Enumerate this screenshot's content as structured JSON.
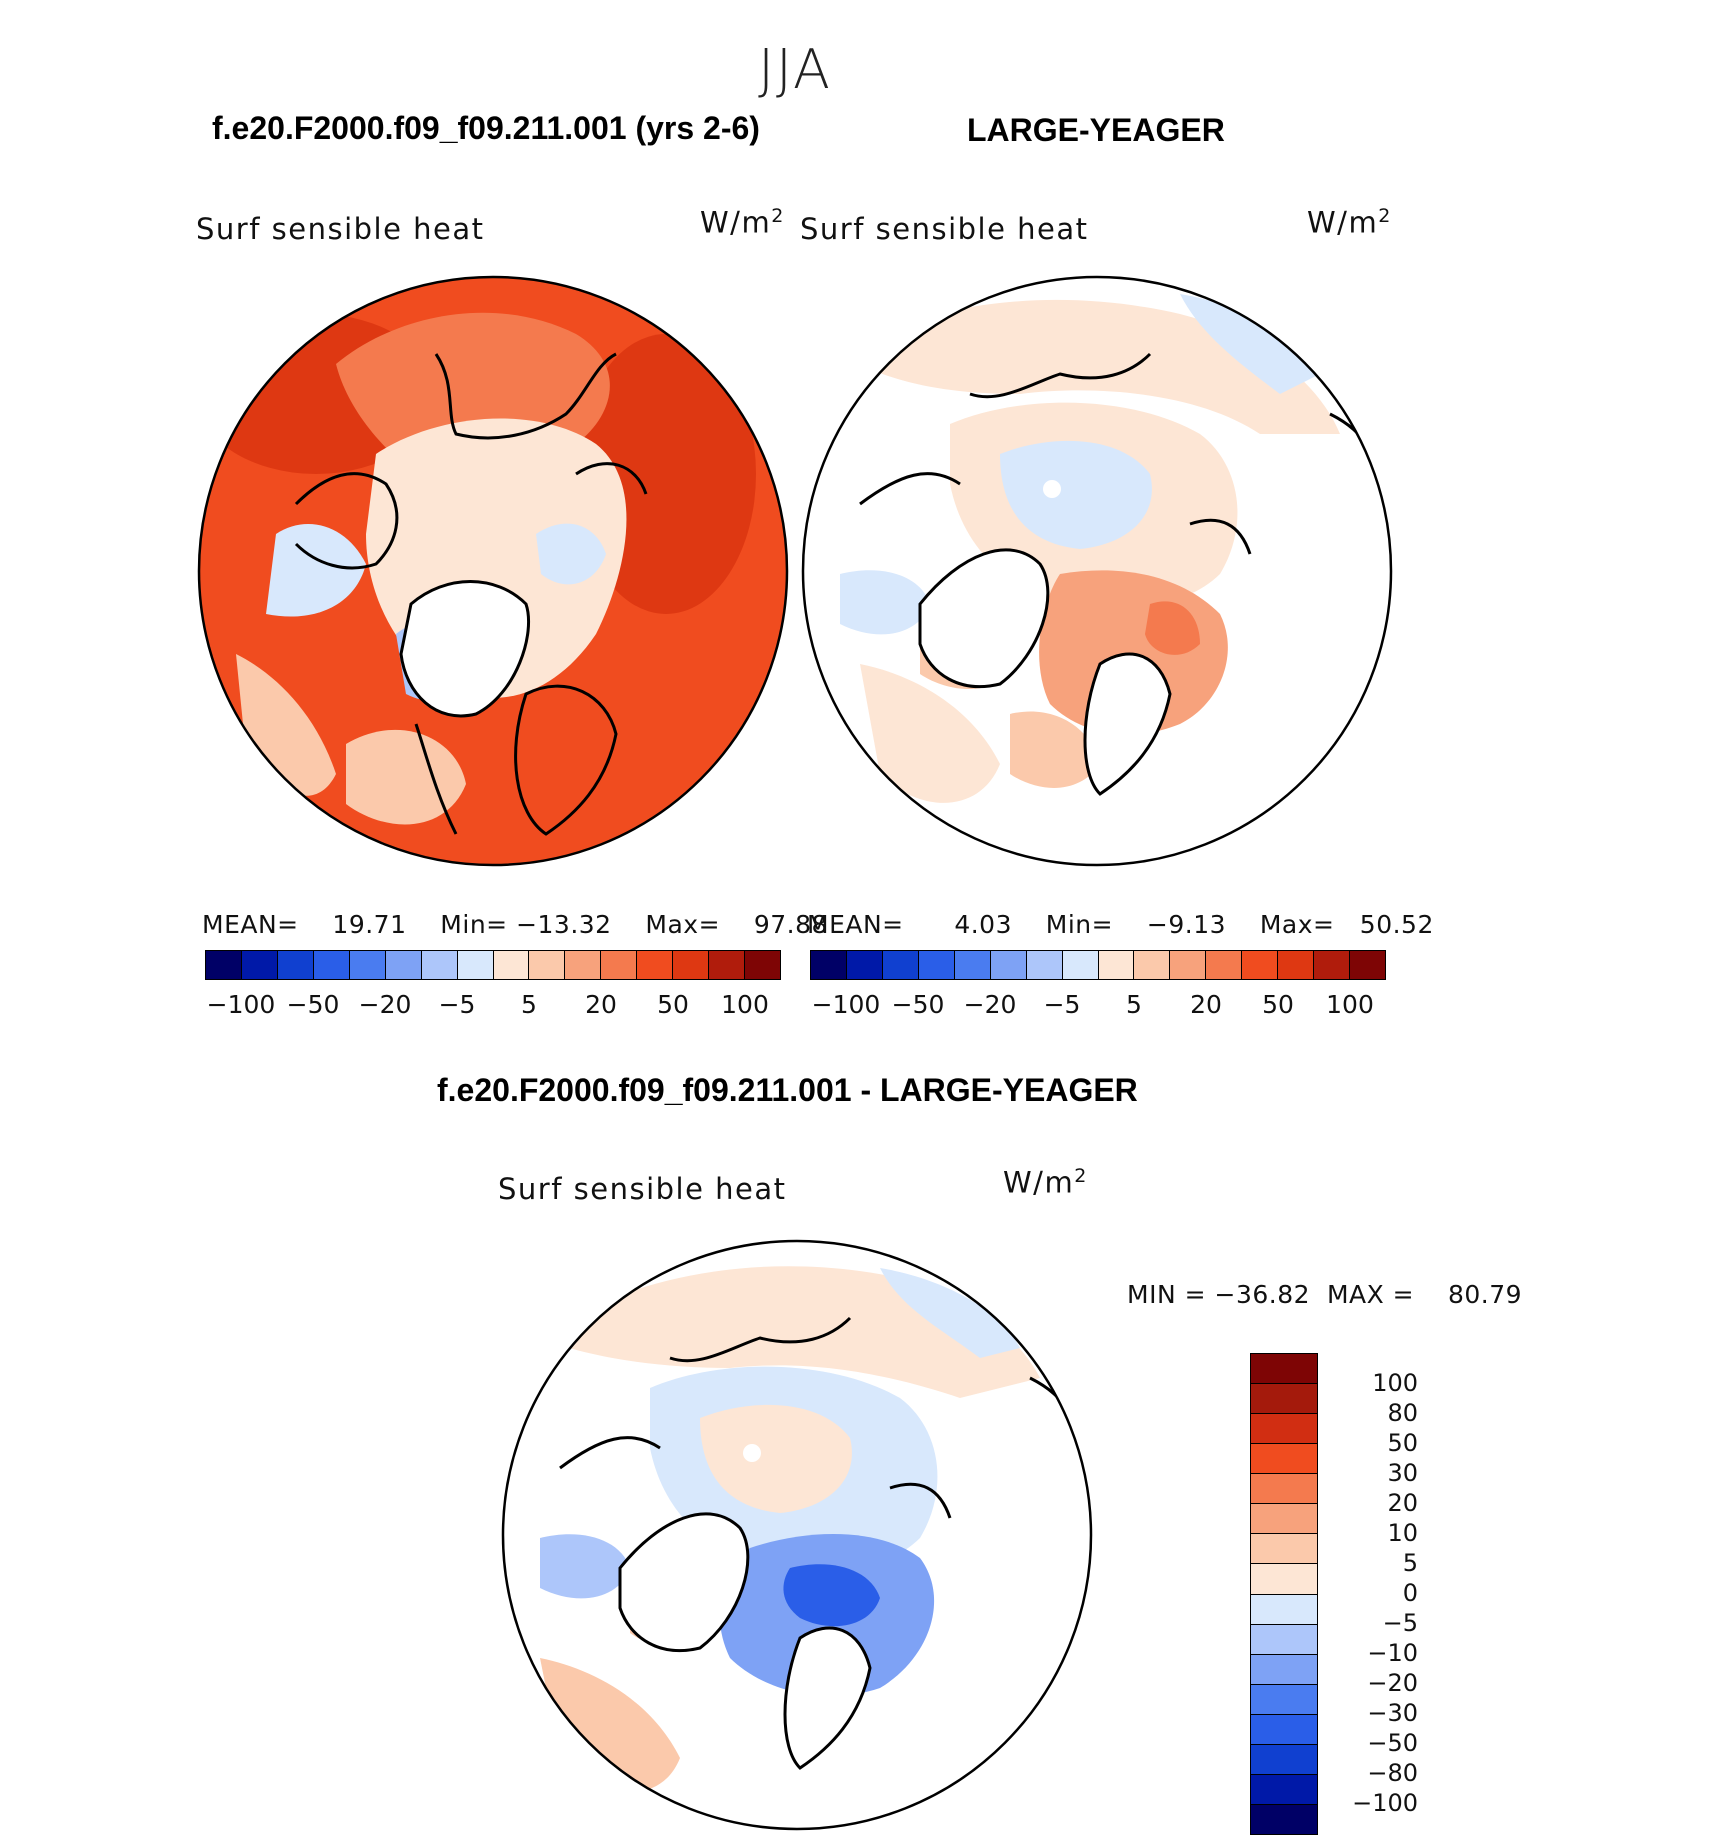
{
  "page": {
    "season_title": "JJA"
  },
  "panels": [
    {
      "case_title": "f.e20.F2000.f09_f09.211.001 (yrs 2-6)",
      "variable": "Surf  sensible  heat",
      "units": "W/m",
      "units_sup": "2",
      "stats": {
        "mean_label": "MEAN=",
        "mean": "19.71",
        "min_label": "Min=",
        "min": "−13.32",
        "max_label": "Max=",
        "max": "97.88"
      }
    },
    {
      "case_title": "LARGE-YEAGER",
      "variable": "Surf  sensible  heat",
      "units": "W/m",
      "units_sup": "2",
      "stats": {
        "mean_label": "MEAN=",
        "mean": "4.03",
        "min_label": "Min=",
        "min": "−9.13",
        "max_label": "Max=",
        "max": "50.52"
      }
    },
    {
      "case_title": "f.e20.F2000.f09_f09.211.001 - LARGE-YEAGER",
      "variable": "Surf  sensible  heat",
      "units": "W/m",
      "units_sup": "2",
      "stats": {
        "min_label": "MIN  =",
        "min": "−36.82",
        "max_label": "MAX  =",
        "max": "80.79"
      }
    }
  ],
  "colorbar_main": {
    "colors": [
      "#000066",
      "#0019a8",
      "#1040d0",
      "#2a5ee8",
      "#4a7cf0",
      "#7ea2f5",
      "#adc6fa",
      "#d8e8fc",
      "#fde6d5",
      "#fbc9ab",
      "#f7a27c",
      "#f47a4e",
      "#f04c1f",
      "#de3812",
      "#b01c0c",
      "#7e0505"
    ],
    "tick_labels": [
      "−100",
      "−50",
      "−20",
      "−5",
      "5",
      "20",
      "50",
      "100"
    ]
  },
  "colorbar_diff": {
    "colors": [
      "#7e0505",
      "#a41a0c",
      "#d12e12",
      "#f04c1f",
      "#f47a4e",
      "#f7a27c",
      "#fbc9ab",
      "#fde6d5",
      "#d8e8fc",
      "#adc6fa",
      "#7ea2f5",
      "#4a7cf0",
      "#2a5ee8",
      "#1040d0",
      "#0019a8",
      "#000066"
    ],
    "tick_labels": [
      "100",
      "80",
      "50",
      "30",
      "20",
      "10",
      "5",
      "0",
      "−5",
      "−10",
      "−20",
      "−30",
      "−50",
      "−80",
      "−100"
    ]
  },
  "map_colors": {
    "ocean_warm": "#f04c1f",
    "ocean_light": "#fde6d5",
    "ocean_pale_blue": "#d8e8fc",
    "anomaly_blue": "#4a7cf0",
    "land": "#ffffff",
    "coast": "#000000"
  }
}
